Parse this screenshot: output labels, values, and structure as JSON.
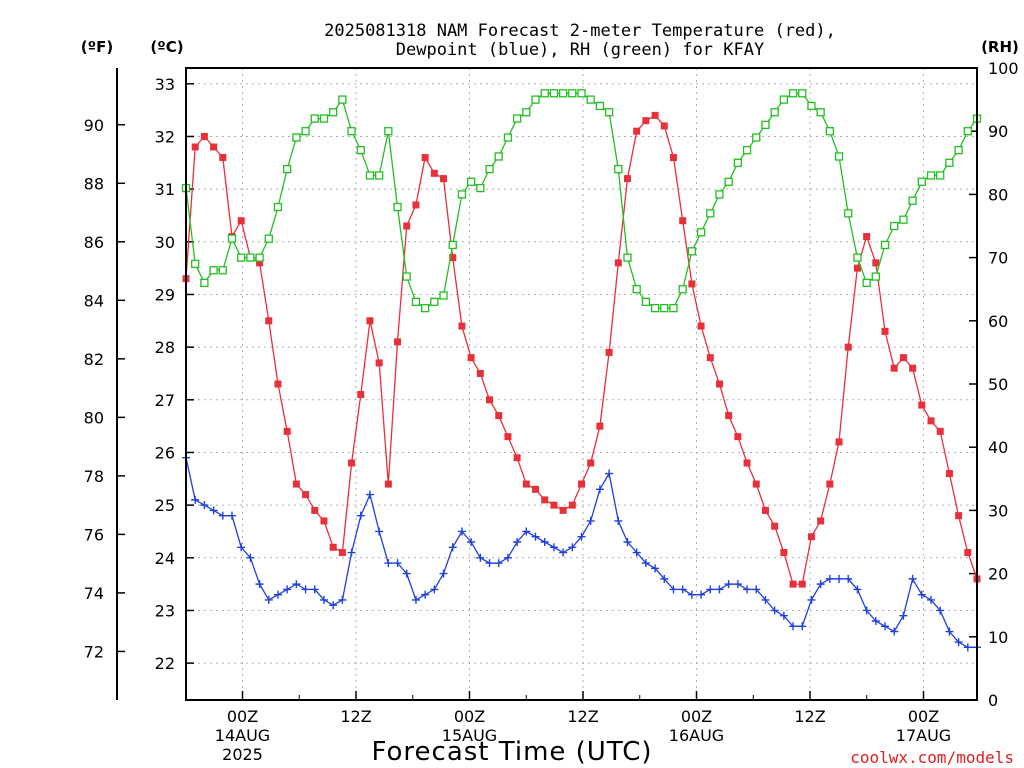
{
  "chart_data": {
    "type": "line",
    "title_line1": "2025081318 NAM Forecast 2-meter Temperature (red),",
    "title_line2": "Dewpoint (blue), RH (green) for KFAY",
    "xlabel": "Forecast Time (UTC)",
    "watermark": "coolwx.com/models",
    "left_axis_f_label": "(ºF)",
    "left_axis_c_label": "(ºC)",
    "right_axis_label": "(RH)",
    "c_ticks": [
      "33",
      "32",
      "31",
      "30",
      "29",
      "28",
      "27",
      "26",
      "25",
      "24",
      "23",
      "22"
    ],
    "f_ticks": [
      "90",
      "88",
      "86",
      "84",
      "82",
      "80",
      "78",
      "76",
      "74",
      "72"
    ],
    "rh_ticks": [
      "100",
      "90",
      "80",
      "70",
      "60",
      "50",
      "40",
      "30",
      "20",
      "10",
      "0"
    ],
    "ylim_c": [
      21.3,
      33.3
    ],
    "ylim_rh": [
      0,
      100
    ],
    "x_ticks": [
      {
        "line1": "00Z",
        "line2": "14AUG",
        "line3": "2025"
      },
      {
        "line1": "12Z",
        "line2": "",
        "line3": ""
      },
      {
        "line1": "00Z",
        "line2": "15AUG",
        "line3": ""
      },
      {
        "line1": "12Z",
        "line2": "",
        "line3": ""
      },
      {
        "line1": "00Z",
        "line2": "16AUG",
        "line3": ""
      },
      {
        "line1": "12Z",
        "line2": "",
        "line3": ""
      },
      {
        "line1": "00Z",
        "line2": "17AUG",
        "line3": ""
      }
    ],
    "series": [
      {
        "name": "Temperature",
        "unit": "C",
        "color": "#e8303a",
        "marker": "filled-square",
        "values": [
          29.3,
          31.8,
          32.0,
          31.8,
          31.6,
          30.1,
          30.4,
          29.7,
          29.6,
          28.5,
          27.3,
          26.4,
          25.4,
          25.2,
          24.9,
          24.7,
          24.2,
          24.1,
          25.8,
          27.1,
          28.5,
          27.7,
          25.4,
          28.1,
          30.3,
          30.7,
          31.6,
          31.3,
          31.2,
          29.7,
          28.4,
          27.8,
          27.5,
          27.0,
          26.7,
          26.3,
          25.9,
          25.4,
          25.3,
          25.1,
          25.0,
          24.9,
          25.0,
          25.4,
          25.8,
          26.5,
          27.9,
          29.6,
          31.2,
          32.1,
          32.3,
          32.4,
          32.2,
          31.6,
          30.4,
          29.2,
          28.4,
          27.8,
          27.3,
          26.7,
          26.3,
          25.8,
          25.4,
          24.9,
          24.6,
          24.1,
          23.5,
          23.5,
          24.4,
          24.7,
          25.4,
          26.2,
          28.0,
          29.5,
          30.1,
          29.6,
          28.3,
          27.6,
          27.8,
          27.6,
          26.9,
          26.6,
          26.4,
          25.6,
          24.8,
          24.1,
          23.6
        ]
      },
      {
        "name": "Dewpoint",
        "unit": "C",
        "color": "#2040e0",
        "marker": "plus",
        "values": [
          25.9,
          25.1,
          25.0,
          24.9,
          24.8,
          24.8,
          24.2,
          24.0,
          23.5,
          23.2,
          23.3,
          23.4,
          23.5,
          23.4,
          23.4,
          23.2,
          23.1,
          23.2,
          24.1,
          24.8,
          25.2,
          24.5,
          23.9,
          23.9,
          23.7,
          23.2,
          23.3,
          23.4,
          23.7,
          24.2,
          24.5,
          24.3,
          24.0,
          23.9,
          23.9,
          24.0,
          24.3,
          24.5,
          24.4,
          24.3,
          24.2,
          24.1,
          24.2,
          24.4,
          24.7,
          25.3,
          25.6,
          24.7,
          24.3,
          24.1,
          23.9,
          23.8,
          23.6,
          23.4,
          23.4,
          23.3,
          23.3,
          23.4,
          23.4,
          23.5,
          23.5,
          23.4,
          23.4,
          23.2,
          23.0,
          22.9,
          22.7,
          22.7,
          23.2,
          23.5,
          23.6,
          23.6,
          23.6,
          23.4,
          23.0,
          22.8,
          22.7,
          22.6,
          22.9,
          23.6,
          23.3,
          23.2,
          23.0,
          22.6,
          22.4,
          22.3,
          22.3
        ]
      },
      {
        "name": "RH",
        "unit": "%",
        "color": "#20c020",
        "marker": "open-square",
        "values": [
          81,
          69,
          66,
          68,
          68,
          73,
          70,
          70,
          70,
          73,
          78,
          84,
          89,
          90,
          92,
          92,
          93,
          95,
          90,
          87,
          83,
          83,
          90,
          78,
          67,
          63,
          62,
          63,
          64,
          72,
          80,
          82,
          81,
          84,
          86,
          89,
          92,
          93,
          95,
          96,
          96,
          96,
          96,
          96,
          95,
          94,
          93,
          84,
          70,
          65,
          63,
          62,
          62,
          62,
          65,
          71,
          74,
          77,
          80,
          82,
          85,
          87,
          89,
          91,
          93,
          95,
          96,
          96,
          94,
          93,
          90,
          86,
          77,
          70,
          66,
          67,
          72,
          75,
          76,
          79,
          82,
          83,
          83,
          85,
          87,
          90,
          92
        ]
      }
    ]
  }
}
